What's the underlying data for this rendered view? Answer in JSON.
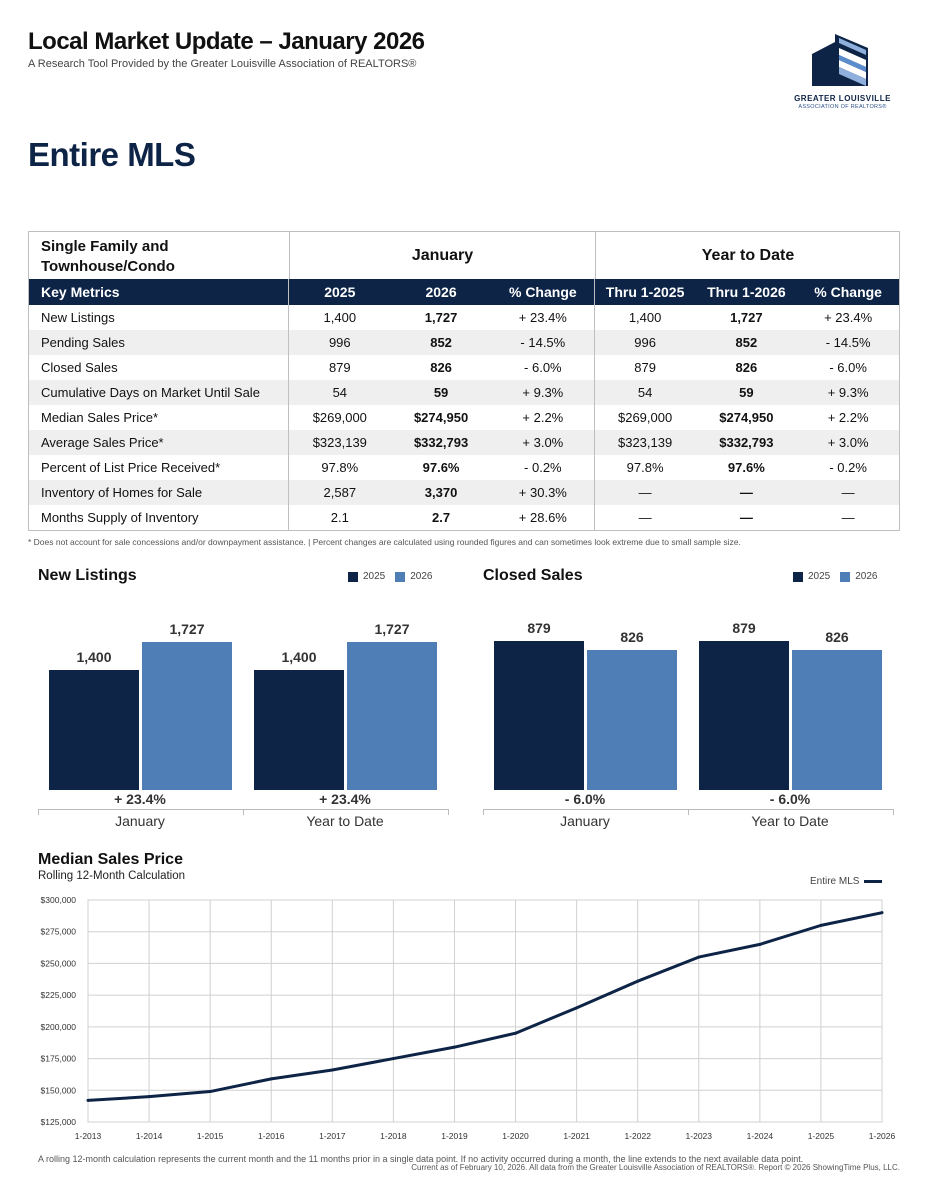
{
  "header": {
    "title": "Local Market Update – January 2026",
    "subtitle": "A Research Tool Provided by the Greater Louisville Association of REALTORS®",
    "logo_line1": "GREATER LOUISVILLE",
    "logo_line2": "ASSOCIATION OF REALTORS®"
  },
  "section_title": "Entire MLS",
  "table": {
    "property_type": "Single Family and Townhouse/Condo",
    "group1": "January",
    "group2": "Year to Date",
    "columns": [
      "Key Metrics",
      "2025",
      "2026",
      "% Change",
      "Thru 1-2025",
      "Thru 1-2026",
      "% Change"
    ],
    "rows": [
      [
        "New Listings",
        "1,400",
        "1,727",
        "+ 23.4%",
        "1,400",
        "1,727",
        "+ 23.4%"
      ],
      [
        "Pending Sales",
        "996",
        "852",
        "- 14.5%",
        "996",
        "852",
        "- 14.5%"
      ],
      [
        "Closed Sales",
        "879",
        "826",
        "- 6.0%",
        "879",
        "826",
        "- 6.0%"
      ],
      [
        "Cumulative Days on Market Until Sale",
        "54",
        "59",
        "+ 9.3%",
        "54",
        "59",
        "+ 9.3%"
      ],
      [
        "Median Sales Price*",
        "$269,000",
        "$274,950",
        "+ 2.2%",
        "$269,000",
        "$274,950",
        "+ 2.2%"
      ],
      [
        "Average Sales Price*",
        "$323,139",
        "$332,793",
        "+ 3.0%",
        "$323,139",
        "$332,793",
        "+ 3.0%"
      ],
      [
        "Percent of List Price Received*",
        "97.8%",
        "97.6%",
        "- 0.2%",
        "97.8%",
        "97.6%",
        "- 0.2%"
      ],
      [
        "Inventory of Homes for Sale",
        "2,587",
        "3,370",
        "+ 30.3%",
        "—",
        "—",
        "—"
      ],
      [
        "Months Supply of Inventory",
        "2.1",
        "2.7",
        "+ 28.6%",
        "—",
        "—",
        "—"
      ]
    ],
    "footnote": "* Does not account for sale concessions and/or downpayment assistance.  |  Percent changes are calculated using rounded figures and can sometimes look extreme due to small sample size."
  },
  "colors": {
    "navy": "#0d2447",
    "blue": "#4f7db5"
  },
  "chart_data": [
    {
      "type": "bar",
      "title": "New Listings",
      "legend": [
        "2025",
        "2026"
      ],
      "categories": [
        "January",
        "Year to Date"
      ],
      "series": [
        {
          "name": "2025",
          "values": [
            1400,
            1400
          ]
        },
        {
          "name": "2026",
          "values": [
            1727,
            1727
          ]
        }
      ],
      "value_labels": [
        [
          "1,400",
          "1,727"
        ],
        [
          "1,400",
          "1,727"
        ]
      ],
      "changes": [
        "+ 23.4%",
        "+ 23.4%"
      ]
    },
    {
      "type": "bar",
      "title": "Closed Sales",
      "legend": [
        "2025",
        "2026"
      ],
      "categories": [
        "January",
        "Year to Date"
      ],
      "series": [
        {
          "name": "2025",
          "values": [
            879,
            879
          ]
        },
        {
          "name": "2026",
          "values": [
            826,
            826
          ]
        }
      ],
      "value_labels": [
        [
          "879",
          "826"
        ],
        [
          "879",
          "826"
        ]
      ],
      "changes": [
        "- 6.0%",
        "- 6.0%"
      ]
    },
    {
      "type": "line",
      "title": "Median Sales Price",
      "subtitle": "Rolling 12-Month Calculation",
      "legend": "Entire MLS",
      "x_ticks": [
        "1-2013",
        "1-2014",
        "1-2015",
        "1-2016",
        "1-2017",
        "1-2018",
        "1-2019",
        "1-2020",
        "1-2021",
        "1-2022",
        "1-2023",
        "1-2024",
        "1-2025",
        "1-2026"
      ],
      "y_ticks": [
        "$125,000",
        "$150,000",
        "$175,000",
        "$200,000",
        "$225,000",
        "$250,000",
        "$275,000",
        "$300,000"
      ],
      "ylim": [
        125000,
        300000
      ],
      "series": [
        {
          "name": "Entire MLS",
          "x": [
            "1-2013",
            "1-2014",
            "1-2015",
            "1-2016",
            "1-2017",
            "1-2018",
            "1-2019",
            "1-2020",
            "1-2021",
            "1-2022",
            "1-2023",
            "1-2024",
            "1-2025",
            "1-2026"
          ],
          "values": [
            142000,
            145000,
            149000,
            159000,
            166000,
            175000,
            184000,
            195000,
            215000,
            236000,
            255000,
            265000,
            280000,
            290000
          ]
        }
      ]
    }
  ],
  "bottom_note1": "A rolling 12-month calculation represents the current month and the 11 months prior in a single data point. If no activity occurred during a month, the line extends to the next available data point.",
  "bottom_note2": "Current as of February 10, 2026. All data from the Greater Louisville Association of REALTORS®. Report © 2026 ShowingTime Plus, LLC."
}
